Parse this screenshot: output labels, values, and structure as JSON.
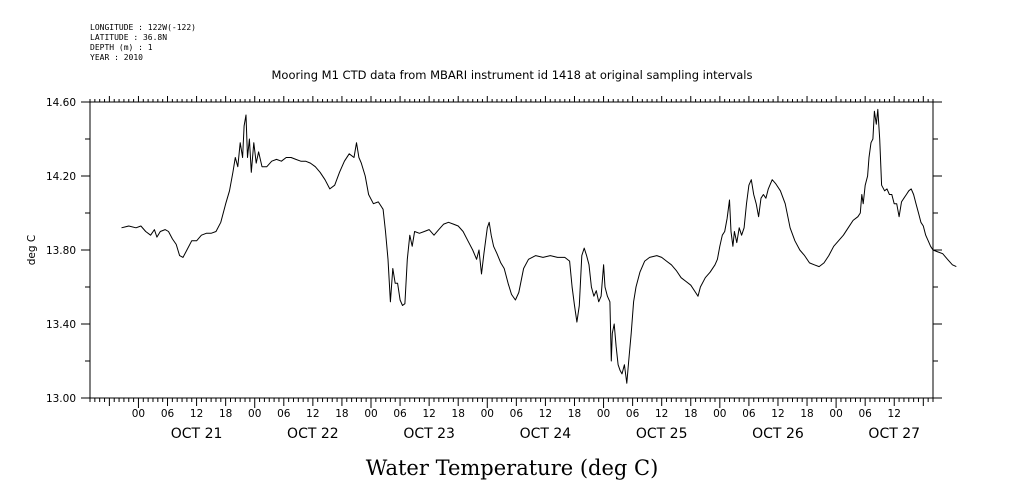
{
  "header": {
    "longitude": "LONGITUDE : 122W(-122)",
    "latitude": "LATITUDE : 36.8N",
    "depth": "DEPTH (m) : 1",
    "year": "YEAR : 2010"
  },
  "chart_data": {
    "type": "line",
    "title": "Mooring M1 CTD data from MBARI instrument id 1418 at original sampling intervals",
    "xlabel": "Water Temperature (deg C)",
    "ylabel": "deg C",
    "ylim": [
      13.0,
      14.6
    ],
    "y_ticks": [
      "13.00",
      "13.40",
      "13.80",
      "14.20",
      "14.60"
    ],
    "x_range_hours": [
      -10,
      164
    ],
    "x_hour_labels": [
      "00",
      "06",
      "12",
      "18",
      "00",
      "06",
      "12",
      "18",
      "00",
      "06",
      "12",
      "18",
      "00",
      "06",
      "12",
      "18",
      "00",
      "06",
      "12",
      "18",
      "00",
      "06",
      "12",
      "18",
      "00",
      "06",
      "12"
    ],
    "day_labels": [
      "OCT 21",
      "OCT 22",
      "OCT 23",
      "OCT 24",
      "OCT 25",
      "OCT 26",
      "OCT 27"
    ],
    "grid": false,
    "series": [
      {
        "values": [
          [
            -3.5,
            13.92
          ],
          [
            -2,
            13.93
          ],
          [
            -0.5,
            13.92
          ],
          [
            0.5,
            13.93
          ],
          [
            1.5,
            13.9
          ],
          [
            2.5,
            13.88
          ],
          [
            3.3,
            13.91
          ],
          [
            3.8,
            13.87
          ],
          [
            4.5,
            13.9
          ],
          [
            5.5,
            13.91
          ],
          [
            6.2,
            13.9
          ],
          [
            7,
            13.86
          ],
          [
            7.8,
            13.83
          ],
          [
            8.5,
            13.77
          ],
          [
            9.2,
            13.76
          ],
          [
            10,
            13.8
          ],
          [
            11,
            13.85
          ],
          [
            12,
            13.85
          ],
          [
            13,
            13.88
          ],
          [
            14,
            13.89
          ],
          [
            15,
            13.89
          ],
          [
            16,
            13.9
          ],
          [
            17,
            13.95
          ],
          [
            18,
            14.05
          ],
          [
            18.8,
            14.12
          ],
          [
            19.5,
            14.22
          ],
          [
            20,
            14.3
          ],
          [
            20.5,
            14.25
          ],
          [
            21,
            14.38
          ],
          [
            21.5,
            14.3
          ],
          [
            21.8,
            14.47
          ],
          [
            22.2,
            14.53
          ],
          [
            22.5,
            14.3
          ],
          [
            22.9,
            14.4
          ],
          [
            23.3,
            14.22
          ],
          [
            23.8,
            14.38
          ],
          [
            24.3,
            14.27
          ],
          [
            24.8,
            14.33
          ],
          [
            25.5,
            14.25
          ],
          [
            26.5,
            14.25
          ],
          [
            27.5,
            14.28
          ],
          [
            28.5,
            14.29
          ],
          [
            29.5,
            14.28
          ],
          [
            30.5,
            14.3
          ],
          [
            31.5,
            14.3
          ],
          [
            32.5,
            14.29
          ],
          [
            33.5,
            14.28
          ],
          [
            34.5,
            14.28
          ],
          [
            35.5,
            14.27
          ],
          [
            36.5,
            14.25
          ],
          [
            37.5,
            14.22
          ],
          [
            38.5,
            14.18
          ],
          [
            39.5,
            14.13
          ],
          [
            40.5,
            14.15
          ],
          [
            41.5,
            14.22
          ],
          [
            42.5,
            14.28
          ],
          [
            43.5,
            14.32
          ],
          [
            44.5,
            14.3
          ],
          [
            45,
            14.38
          ],
          [
            45.5,
            14.3
          ],
          [
            46,
            14.27
          ],
          [
            46.8,
            14.2
          ],
          [
            47.5,
            14.1
          ],
          [
            48.5,
            14.05
          ],
          [
            49.5,
            14.06
          ],
          [
            50.5,
            14.02
          ],
          [
            51,
            13.9
          ],
          [
            51.5,
            13.75
          ],
          [
            52,
            13.52
          ],
          [
            52.5,
            13.7
          ],
          [
            53,
            13.62
          ],
          [
            53.5,
            13.62
          ],
          [
            54,
            13.53
          ],
          [
            54.5,
            13.5
          ],
          [
            55,
            13.51
          ],
          [
            55.5,
            13.75
          ],
          [
            56,
            13.88
          ],
          [
            56.5,
            13.82
          ],
          [
            57,
            13.9
          ],
          [
            58,
            13.89
          ],
          [
            59,
            13.9
          ],
          [
            60,
            13.91
          ],
          [
            61,
            13.88
          ],
          [
            62,
            13.91
          ],
          [
            63,
            13.94
          ],
          [
            64,
            13.95
          ],
          [
            65,
            13.94
          ],
          [
            66,
            13.93
          ],
          [
            67,
            13.9
          ],
          [
            68,
            13.85
          ],
          [
            69,
            13.8
          ],
          [
            69.8,
            13.75
          ],
          [
            70.3,
            13.8
          ],
          [
            70.8,
            13.67
          ],
          [
            71.3,
            13.78
          ],
          [
            72,
            13.92
          ],
          [
            72.4,
            13.95
          ],
          [
            72.8,
            13.88
          ],
          [
            73.3,
            13.82
          ],
          [
            74,
            13.78
          ],
          [
            74.8,
            13.73
          ],
          [
            75.5,
            13.7
          ],
          [
            76.3,
            13.62
          ],
          [
            77,
            13.56
          ],
          [
            77.8,
            13.53
          ],
          [
            78.5,
            13.57
          ],
          [
            79.5,
            13.7
          ],
          [
            80.5,
            13.75
          ],
          [
            82,
            13.77
          ],
          [
            83.5,
            13.76
          ],
          [
            85,
            13.77
          ],
          [
            86.5,
            13.76
          ],
          [
            88,
            13.76
          ],
          [
            89,
            13.74
          ],
          [
            89.5,
            13.6
          ],
          [
            90,
            13.5
          ],
          [
            90.5,
            13.41
          ],
          [
            91,
            13.5
          ],
          [
            91.5,
            13.77
          ],
          [
            92,
            13.81
          ],
          [
            92.5,
            13.77
          ],
          [
            93,
            13.72
          ],
          [
            93.5,
            13.6
          ],
          [
            94,
            13.55
          ],
          [
            94.5,
            13.58
          ],
          [
            95,
            13.52
          ],
          [
            95.5,
            13.55
          ],
          [
            96,
            13.72
          ],
          [
            96.3,
            13.6
          ],
          [
            96.8,
            13.55
          ],
          [
            97.3,
            13.52
          ],
          [
            97.6,
            13.2
          ],
          [
            97.8,
            13.35
          ],
          [
            98.2,
            13.4
          ],
          [
            98.6,
            13.28
          ],
          [
            99,
            13.18
          ],
          [
            99.4,
            13.15
          ],
          [
            99.8,
            13.13
          ],
          [
            100.3,
            13.18
          ],
          [
            100.8,
            13.08
          ],
          [
            101.2,
            13.2
          ],
          [
            101.7,
            13.35
          ],
          [
            102.2,
            13.52
          ],
          [
            102.7,
            13.6
          ],
          [
            103.5,
            13.68
          ],
          [
            104.5,
            13.74
          ],
          [
            105.5,
            13.76
          ],
          [
            107,
            13.77
          ],
          [
            108,
            13.76
          ],
          [
            109,
            13.74
          ],
          [
            110,
            13.72
          ],
          [
            111,
            13.69
          ],
          [
            112,
            13.65
          ],
          [
            113,
            13.63
          ],
          [
            114,
            13.61
          ],
          [
            115,
            13.57
          ],
          [
            115.5,
            13.55
          ],
          [
            116,
            13.6
          ],
          [
            117,
            13.65
          ],
          [
            118,
            13.68
          ],
          [
            119,
            13.72
          ],
          [
            119.5,
            13.75
          ],
          [
            120,
            13.82
          ],
          [
            120.5,
            13.88
          ],
          [
            121,
            13.9
          ],
          [
            121.5,
            13.97
          ],
          [
            122,
            14.07
          ],
          [
            122.3,
            13.9
          ],
          [
            122.7,
            13.82
          ],
          [
            123,
            13.9
          ],
          [
            123.5,
            13.84
          ],
          [
            124,
            13.92
          ],
          [
            124.5,
            13.88
          ],
          [
            125,
            13.92
          ],
          [
            125.5,
            14.05
          ],
          [
            126,
            14.15
          ],
          [
            126.5,
            14.18
          ],
          [
            127,
            14.1
          ],
          [
            127.5,
            14.05
          ],
          [
            128,
            13.98
          ],
          [
            128.5,
            14.08
          ],
          [
            129,
            14.1
          ],
          [
            129.5,
            14.08
          ],
          [
            130,
            14.13
          ],
          [
            130.8,
            14.18
          ],
          [
            131.5,
            14.16
          ],
          [
            132.5,
            14.12
          ],
          [
            133.5,
            14.05
          ],
          [
            134.5,
            13.92
          ],
          [
            135.5,
            13.85
          ],
          [
            136.5,
            13.8
          ],
          [
            137.5,
            13.77
          ],
          [
            138.5,
            13.73
          ],
          [
            139.5,
            13.72
          ],
          [
            140.5,
            13.71
          ],
          [
            141.5,
            13.73
          ],
          [
            142.5,
            13.77
          ],
          [
            143.5,
            13.82
          ],
          [
            144.5,
            13.85
          ],
          [
            145.5,
            13.88
          ],
          [
            146.5,
            13.92
          ],
          [
            147.5,
            13.96
          ],
          [
            148.5,
            13.98
          ],
          [
            149,
            14.0
          ],
          [
            149.3,
            14.1
          ],
          [
            149.6,
            14.05
          ],
          [
            150,
            14.15
          ],
          [
            150.5,
            14.2
          ],
          [
            150.8,
            14.3
          ],
          [
            151.2,
            14.38
          ],
          [
            151.6,
            14.4
          ],
          [
            151.9,
            14.55
          ],
          [
            152.3,
            14.48
          ],
          [
            152.6,
            14.56
          ],
          [
            153,
            14.4
          ],
          [
            153.4,
            14.15
          ],
          [
            154,
            14.12
          ],
          [
            154.5,
            14.13
          ],
          [
            155,
            14.1
          ],
          [
            155.5,
            14.1
          ],
          [
            156,
            14.05
          ],
          [
            156.5,
            14.05
          ],
          [
            157,
            13.98
          ],
          [
            157.5,
            14.06
          ],
          [
            158,
            14.08
          ],
          [
            158.5,
            14.1
          ],
          [
            159,
            14.12
          ],
          [
            159.5,
            14.13
          ],
          [
            160,
            14.1
          ],
          [
            160.5,
            14.05
          ],
          [
            161,
            14.0
          ],
          [
            161.5,
            13.95
          ],
          [
            162,
            13.93
          ],
          [
            162.5,
            13.88
          ],
          [
            163,
            13.85
          ],
          [
            163.5,
            13.82
          ],
          [
            164,
            13.8
          ],
          [
            165,
            13.79
          ],
          [
            166,
            13.78
          ],
          [
            167,
            13.75
          ],
          [
            168,
            13.72
          ],
          [
            168.8,
            13.71
          ]
        ]
      }
    ]
  }
}
